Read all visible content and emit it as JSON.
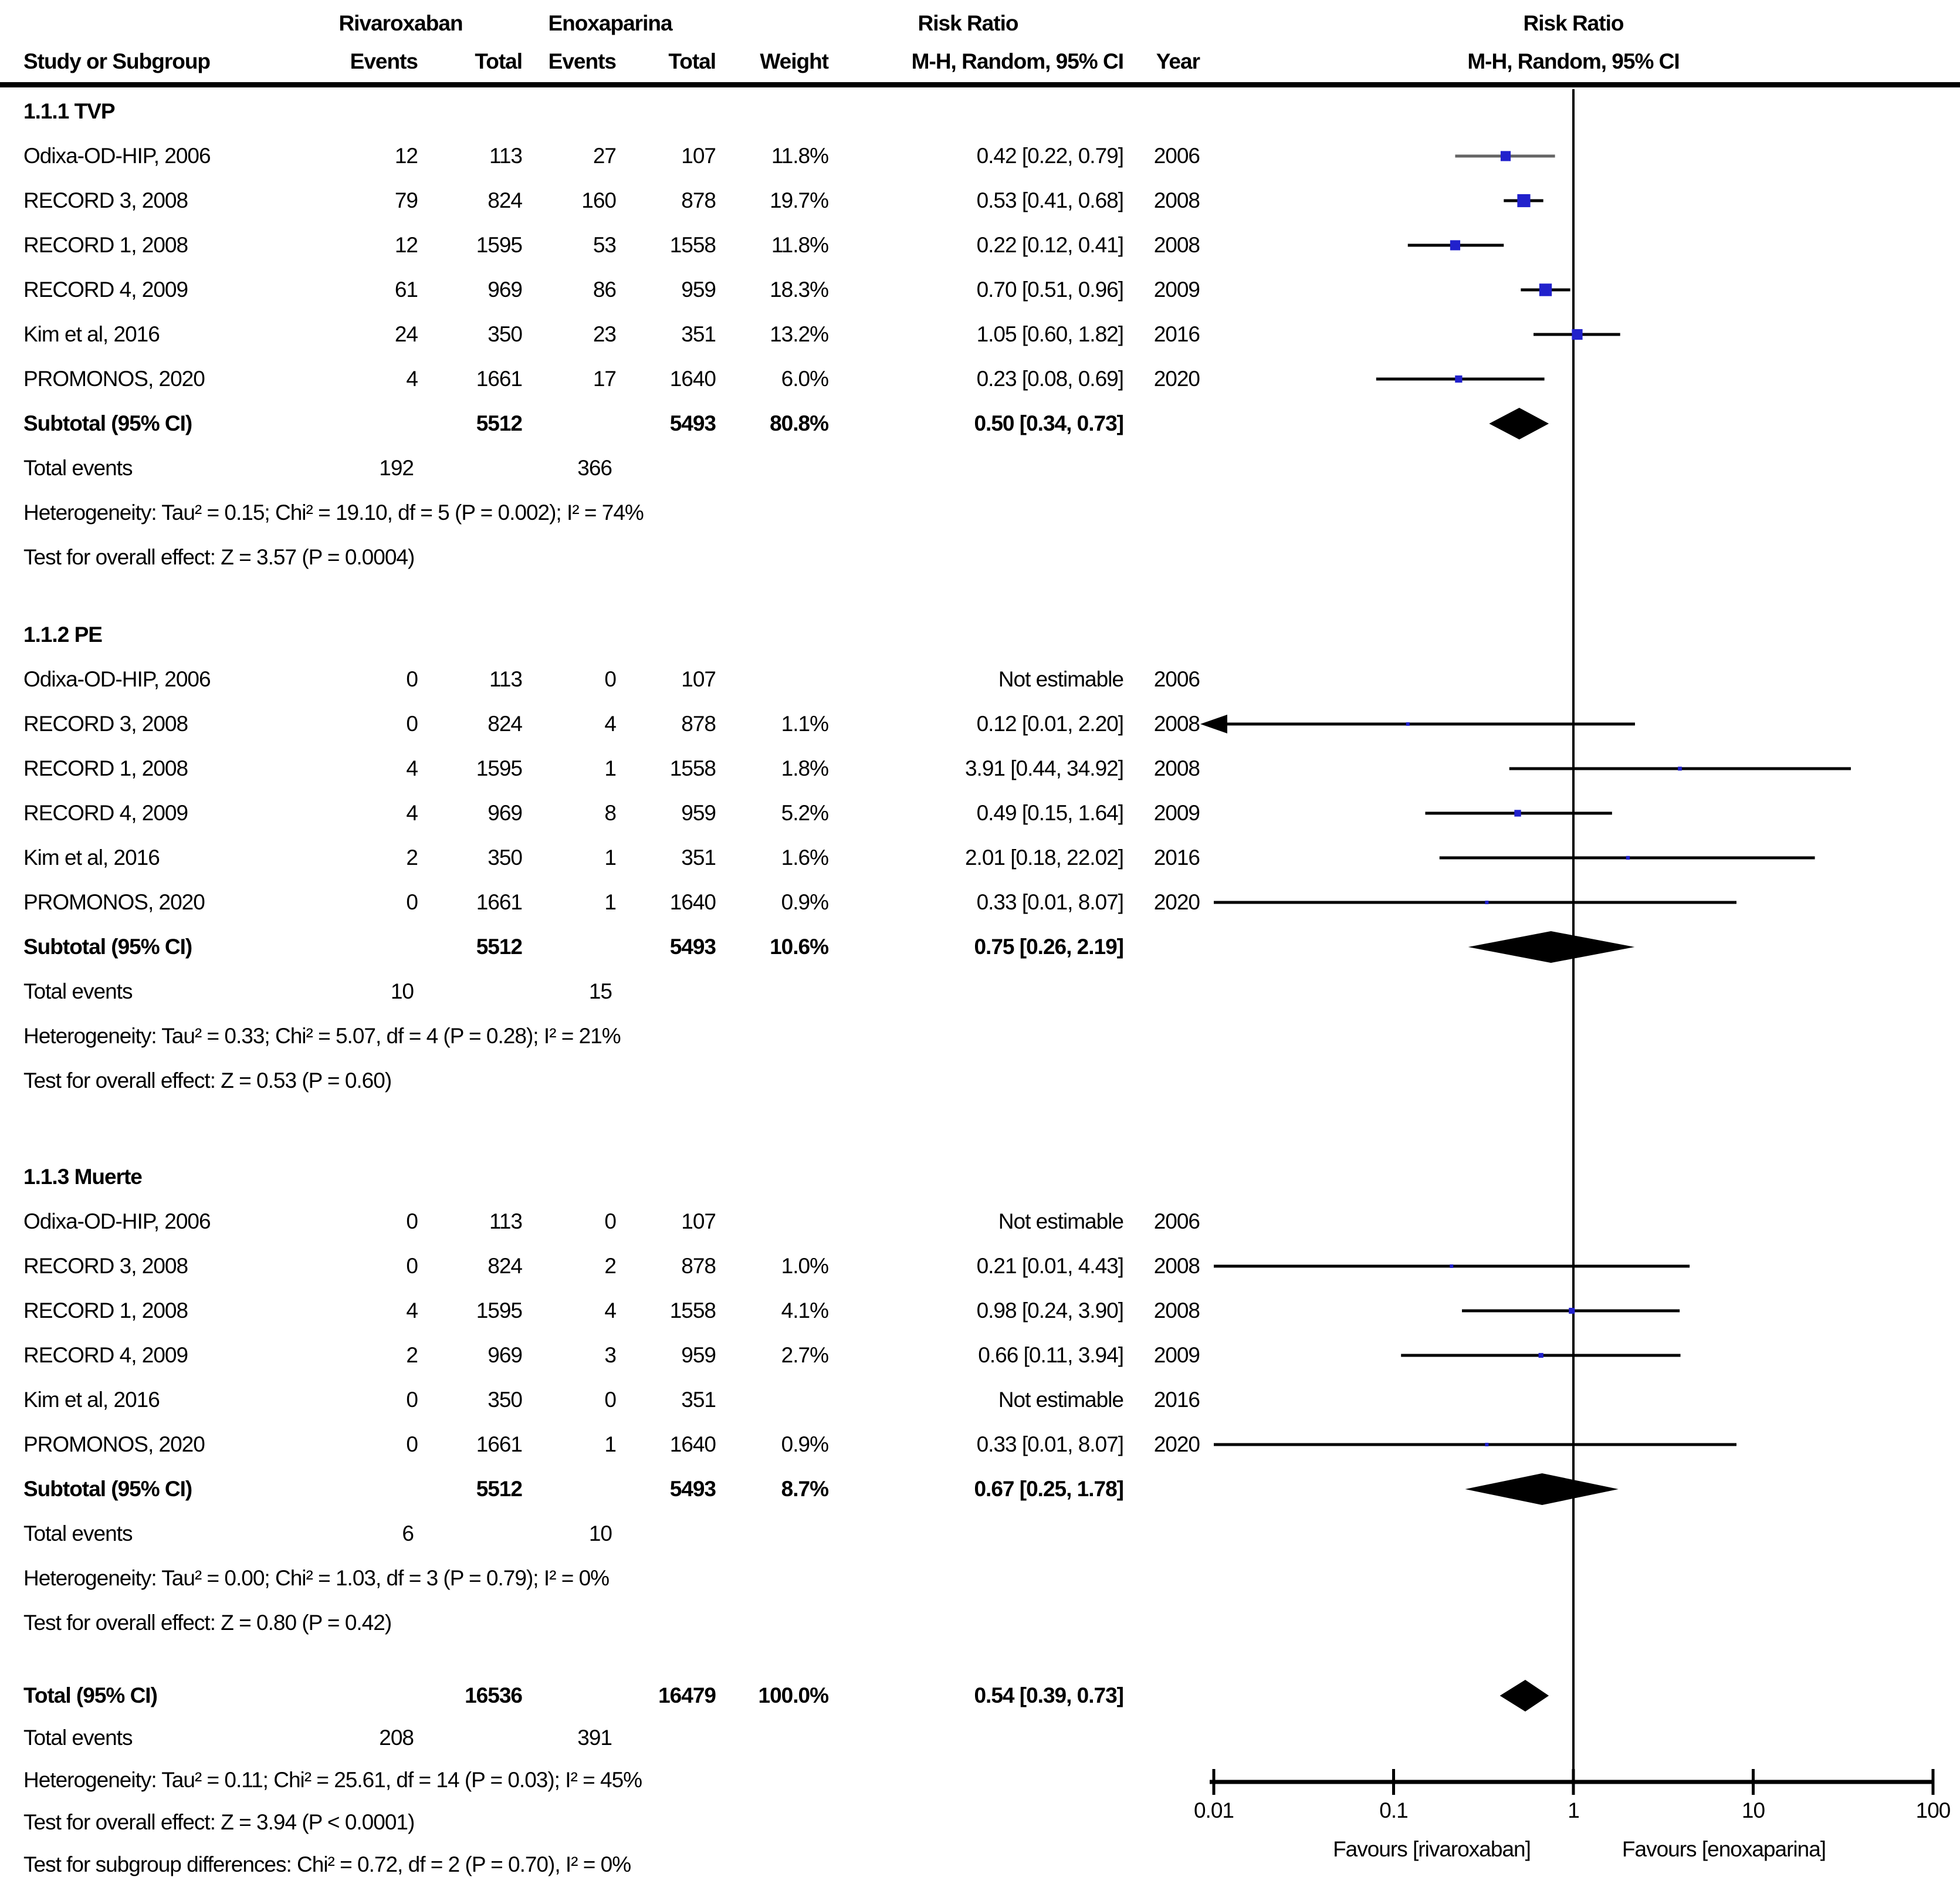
{
  "header": {
    "group1": "Rivaroxaban",
    "group2": "Enoxaparina",
    "effect": "Risk Ratio",
    "plot_title": "Risk Ratio",
    "plot_subtitle": "M-H, Random, 95% CI",
    "columns": {
      "study": "Study or Subgroup",
      "events": "Events",
      "total": "Total",
      "weight": "Weight",
      "ci": "M-H, Random, 95% CI",
      "year": "Year"
    }
  },
  "sections": [
    {
      "title": "1.1.1 TVP",
      "rows": [
        {
          "study": "Odixa-OD-HIP, 2006",
          "e1": "12",
          "t1": "113",
          "e2": "27",
          "t2": "107",
          "weight": "11.8%",
          "ci": "0.42 [0.22, 0.79]",
          "year": "2006"
        },
        {
          "study": "RECORD 3, 2008",
          "e1": "79",
          "t1": "824",
          "e2": "160",
          "t2": "878",
          "weight": "19.7%",
          "ci": "0.53 [0.41, 0.68]",
          "year": "2008"
        },
        {
          "study": "RECORD 1, 2008",
          "e1": "12",
          "t1": "1595",
          "e2": "53",
          "t2": "1558",
          "weight": "11.8%",
          "ci": "0.22 [0.12, 0.41]",
          "year": "2008"
        },
        {
          "study": "RECORD 4, 2009",
          "e1": "61",
          "t1": "969",
          "e2": "86",
          "t2": "959",
          "weight": "18.3%",
          "ci": "0.70 [0.51, 0.96]",
          "year": "2009"
        },
        {
          "study": "Kim et al, 2016",
          "e1": "24",
          "t1": "350",
          "e2": "23",
          "t2": "351",
          "weight": "13.2%",
          "ci": "1.05 [0.60, 1.82]",
          "year": "2016"
        },
        {
          "study": "PROMONOS, 2020",
          "e1": "4",
          "t1": "1661",
          "e2": "17",
          "t2": "1640",
          "weight": "6.0%",
          "ci": "0.23 [0.08, 0.69]",
          "year": "2020"
        }
      ],
      "subtotal": {
        "label": "Subtotal (95% CI)",
        "t1": "5512",
        "t2": "5493",
        "weight": "80.8%",
        "ci": "0.50 [0.34, 0.73]"
      },
      "total_events": {
        "label": "Total events",
        "v1": "192",
        "v2": "366"
      },
      "heterogeneity": "Heterogeneity: Tau² = 0.15; Chi² = 19.10, df = 5 (P = 0.002); I² = 74%",
      "overall_effect": "Test for overall effect: Z = 3.57 (P = 0.0004)"
    },
    {
      "title": "1.1.2 PE",
      "rows": [
        {
          "study": "Odixa-OD-HIP, 2006",
          "e1": "0",
          "t1": "113",
          "e2": "0",
          "t2": "107",
          "weight": "",
          "ci": "Not estimable",
          "year": "2006"
        },
        {
          "study": "RECORD 3, 2008",
          "e1": "0",
          "t1": "824",
          "e2": "4",
          "t2": "878",
          "weight": "1.1%",
          "ci": "0.12 [0.01, 2.20]",
          "year": "2008"
        },
        {
          "study": "RECORD 1, 2008",
          "e1": "4",
          "t1": "1595",
          "e2": "1",
          "t2": "1558",
          "weight": "1.8%",
          "ci": "3.91 [0.44, 34.92]",
          "year": "2008"
        },
        {
          "study": "RECORD 4, 2009",
          "e1": "4",
          "t1": "969",
          "e2": "8",
          "t2": "959",
          "weight": "5.2%",
          "ci": "0.49 [0.15, 1.64]",
          "year": "2009"
        },
        {
          "study": "Kim et al, 2016",
          "e1": "2",
          "t1": "350",
          "e2": "1",
          "t2": "351",
          "weight": "1.6%",
          "ci": "2.01 [0.18, 22.02]",
          "year": "2016"
        },
        {
          "study": "PROMONOS, 2020",
          "e1": "0",
          "t1": "1661",
          "e2": "1",
          "t2": "1640",
          "weight": "0.9%",
          "ci": "0.33 [0.01, 8.07]",
          "year": "2020"
        }
      ],
      "subtotal": {
        "label": "Subtotal (95% CI)",
        "t1": "5512",
        "t2": "5493",
        "weight": "10.6%",
        "ci": "0.75 [0.26, 2.19]"
      },
      "total_events": {
        "label": "Total events",
        "v1": "10",
        "v2": "15"
      },
      "heterogeneity": "Heterogeneity: Tau² = 0.33; Chi² = 5.07, df = 4 (P = 0.28); I² = 21%",
      "overall_effect": "Test for overall effect: Z = 0.53 (P = 0.60)"
    },
    {
      "title": "1.1.3 Muerte",
      "rows": [
        {
          "study": "Odixa-OD-HIP, 2006",
          "e1": "0",
          "t1": "113",
          "e2": "0",
          "t2": "107",
          "weight": "",
          "ci": "Not estimable",
          "year": "2006"
        },
        {
          "study": "RECORD 3, 2008",
          "e1": "0",
          "t1": "824",
          "e2": "2",
          "t2": "878",
          "weight": "1.0%",
          "ci": "0.21 [0.01, 4.43]",
          "year": "2008"
        },
        {
          "study": "RECORD 1, 2008",
          "e1": "4",
          "t1": "1595",
          "e2": "4",
          "t2": "1558",
          "weight": "4.1%",
          "ci": "0.98 [0.24, 3.90]",
          "year": "2008"
        },
        {
          "study": "RECORD 4, 2009",
          "e1": "2",
          "t1": "969",
          "e2": "3",
          "t2": "959",
          "weight": "2.7%",
          "ci": "0.66 [0.11, 3.94]",
          "year": "2009"
        },
        {
          "study": "Kim et al, 2016",
          "e1": "0",
          "t1": "350",
          "e2": "0",
          "t2": "351",
          "weight": "",
          "ci": "Not estimable",
          "year": "2016"
        },
        {
          "study": "PROMONOS, 2020",
          "e1": "0",
          "t1": "1661",
          "e2": "1",
          "t2": "1640",
          "weight": "0.9%",
          "ci": "0.33 [0.01, 8.07]",
          "year": "2020"
        }
      ],
      "subtotal": {
        "label": "Subtotal (95% CI)",
        "t1": "5512",
        "t2": "5493",
        "weight": "8.7%",
        "ci": "0.67 [0.25, 1.78]"
      },
      "total_events": {
        "label": "Total events",
        "v1": "6",
        "v2": "10"
      },
      "heterogeneity": "Heterogeneity: Tau² = 0.00; Chi² = 1.03, df = 3 (P = 0.79); I² = 0%",
      "overall_effect": "Test for overall effect: Z = 0.80 (P = 0.42)"
    }
  ],
  "totals": {
    "row": {
      "label": "Total (95% CI)",
      "t1": "16536",
      "t2": "16479",
      "weight": "100.0%",
      "ci": "0.54 [0.39, 0.73]"
    },
    "total_events": {
      "label": "Total events",
      "v1": "208",
      "v2": "391"
    },
    "heterogeneity": "Heterogeneity: Tau² = 0.11; Chi² = 25.61, df = 14 (P = 0.03); I² = 45%",
    "overall_effect": "Test for overall effect: Z = 3.94 (P < 0.0001)",
    "subgroup_differences": "Test for subgroup differences: Chi² = 0.72, df = 2 (P = 0.70), I² = 0%"
  },
  "chart_data": {
    "type": "forest",
    "x_scale": "log",
    "x_range": [
      0.01,
      100
    ],
    "x_ticks": [
      "0.01",
      "0.1",
      "1",
      "10",
      "100"
    ],
    "null_line": 1,
    "favours_left": "Favours [rivaroxaban]",
    "favours_right": "Favours [enoxaparina]",
    "marker_color": "#2121CC",
    "line_color": "#000000",
    "groups": [
      {
        "name": "1.1.1 TVP",
        "studies": [
          {
            "label": "Odixa-OD-HIP, 2006",
            "rr": 0.42,
            "lo": 0.22,
            "hi": 0.79,
            "weight": 11.8,
            "line_color": "#646464"
          },
          {
            "label": "RECORD 3, 2008",
            "rr": 0.53,
            "lo": 0.41,
            "hi": 0.68,
            "weight": 19.7
          },
          {
            "label": "RECORD 1, 2008",
            "rr": 0.22,
            "lo": 0.12,
            "hi": 0.41,
            "weight": 11.8
          },
          {
            "label": "RECORD 4, 2009",
            "rr": 0.7,
            "lo": 0.51,
            "hi": 0.96,
            "weight": 18.3
          },
          {
            "label": "Kim et al, 2016",
            "rr": 1.05,
            "lo": 0.6,
            "hi": 1.82,
            "weight": 13.2
          },
          {
            "label": "PROMONOS, 2020",
            "rr": 0.23,
            "lo": 0.08,
            "hi": 0.69,
            "weight": 6.0
          }
        ],
        "subtotal": {
          "rr": 0.5,
          "lo": 0.34,
          "hi": 0.73
        }
      },
      {
        "name": "1.1.2 PE",
        "studies": [
          {
            "label": "Odixa-OD-HIP, 2006",
            "rr": null
          },
          {
            "label": "RECORD 3, 2008",
            "rr": 0.12,
            "lo": 0.01,
            "hi": 2.2,
            "weight": 1.1,
            "arrow_lo": true
          },
          {
            "label": "RECORD 1, 2008",
            "rr": 3.91,
            "lo": 0.44,
            "hi": 34.92,
            "weight": 1.8
          },
          {
            "label": "RECORD 4, 2009",
            "rr": 0.49,
            "lo": 0.15,
            "hi": 1.64,
            "weight": 5.2
          },
          {
            "label": "Kim et al, 2016",
            "rr": 2.01,
            "lo": 0.18,
            "hi": 22.02,
            "weight": 1.6
          },
          {
            "label": "PROMONOS, 2020",
            "rr": 0.33,
            "lo": 0.01,
            "hi": 8.07,
            "weight": 0.9
          }
        ],
        "subtotal": {
          "rr": 0.75,
          "lo": 0.26,
          "hi": 2.19
        }
      },
      {
        "name": "1.1.3 Muerte",
        "studies": [
          {
            "label": "Odixa-OD-HIP, 2006",
            "rr": null
          },
          {
            "label": "RECORD 3, 2008",
            "rr": 0.21,
            "lo": 0.01,
            "hi": 4.43,
            "weight": 1.0
          },
          {
            "label": "RECORD 1, 2008",
            "rr": 0.98,
            "lo": 0.24,
            "hi": 3.9,
            "weight": 4.1
          },
          {
            "label": "RECORD 4, 2009",
            "rr": 0.66,
            "lo": 0.11,
            "hi": 3.94,
            "weight": 2.7
          },
          {
            "label": "Kim et al, 2016",
            "rr": null
          },
          {
            "label": "PROMONOS, 2020",
            "rr": 0.33,
            "lo": 0.01,
            "hi": 8.07,
            "weight": 0.9
          }
        ],
        "subtotal": {
          "rr": 0.67,
          "lo": 0.25,
          "hi": 1.78
        }
      }
    ],
    "overall": {
      "rr": 0.54,
      "lo": 0.39,
      "hi": 0.73
    }
  }
}
